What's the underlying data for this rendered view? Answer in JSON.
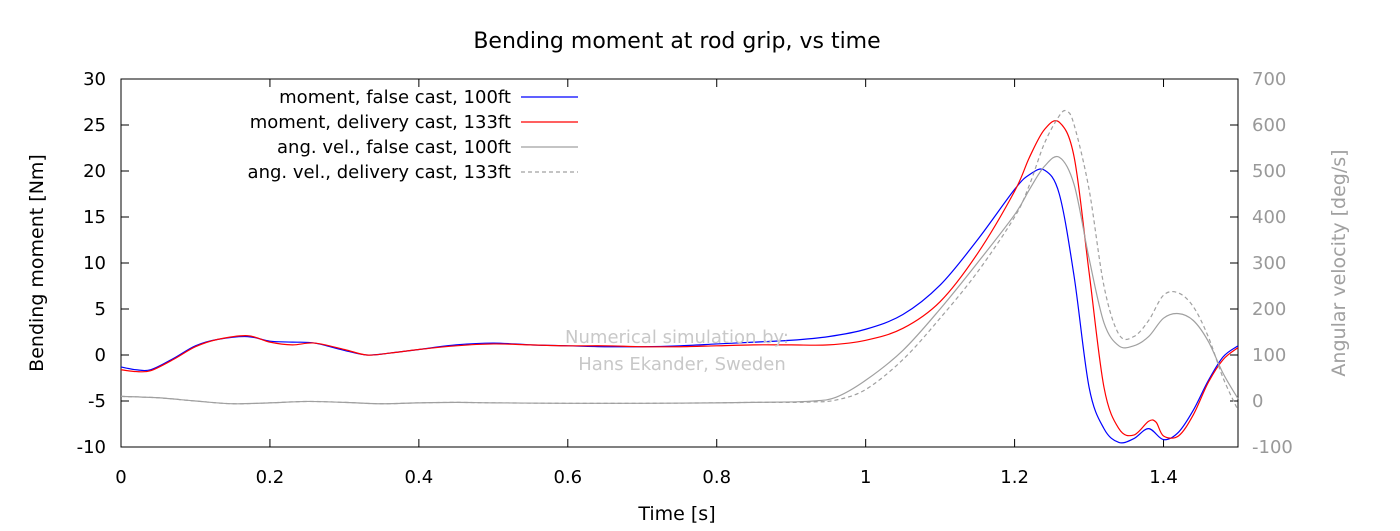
{
  "chart_data": {
    "type": "line",
    "title": "Bending moment at rod grip, vs time",
    "xlabel": "Time [s]",
    "ylabel": "Bending moment [Nm]",
    "y2label": "Angular velocity [deg/s]",
    "xlim": [
      0,
      1.5
    ],
    "ylim": [
      -10,
      30
    ],
    "y2lim": [
      -100,
      700
    ],
    "xticks": [
      "0",
      "0.2",
      "0.4",
      "0.6",
      "0.8",
      "1",
      "1.2",
      "1.4"
    ],
    "xtick_values": [
      0,
      0.2,
      0.4,
      0.6,
      0.8,
      1.0,
      1.2,
      1.4
    ],
    "yticks": [
      "-10",
      "-5",
      "0",
      "5",
      "10",
      "15",
      "20",
      "25",
      "30"
    ],
    "ytick_values": [
      -10,
      -5,
      0,
      5,
      10,
      15,
      20,
      25,
      30
    ],
    "y2ticks": [
      "-100",
      "0",
      "100",
      "200",
      "300",
      "400",
      "500",
      "600",
      "700"
    ],
    "y2tick_values": [
      -100,
      0,
      100,
      200,
      300,
      400,
      500,
      600,
      700
    ],
    "grid": false,
    "legend_position": "top-left",
    "watermark": [
      "Numerical simulation by:",
      "Hans Ekander, Sweden"
    ],
    "series": [
      {
        "name": "moment, false cast, 100ft",
        "axis": "y1",
        "color": "#0000ff",
        "dash": false,
        "x": [
          0,
          0.02,
          0.04,
          0.07,
          0.1,
          0.13,
          0.17,
          0.2,
          0.23,
          0.26,
          0.3,
          0.33,
          0.36,
          0.4,
          0.45,
          0.5,
          0.55,
          0.6,
          0.65,
          0.7,
          0.75,
          0.8,
          0.85,
          0.9,
          0.95,
          1.0,
          1.05,
          1.1,
          1.15,
          1.2,
          1.22,
          1.24,
          1.26,
          1.28,
          1.3,
          1.32,
          1.34,
          1.36,
          1.38,
          1.4,
          1.42,
          1.44,
          1.46,
          1.48,
          1.5
        ],
        "y": [
          -1.3,
          -1.6,
          -1.6,
          -0.4,
          1.0,
          1.7,
          2.0,
          1.5,
          1.4,
          1.3,
          0.5,
          0.0,
          0.2,
          0.6,
          1.1,
          1.3,
          1.1,
          1.0,
          0.9,
          0.9,
          1.0,
          1.2,
          1.4,
          1.6,
          2.0,
          2.8,
          4.4,
          7.6,
          12.5,
          18.0,
          19.6,
          20.1,
          17.5,
          8.5,
          -3.5,
          -8.0,
          -9.5,
          -9.1,
          -8.0,
          -9.2,
          -8.4,
          -6.0,
          -2.8,
          -0.2,
          1.0
        ]
      },
      {
        "name": "moment, delivery cast, 133ft",
        "axis": "y1",
        "color": "#ff0000",
        "dash": false,
        "x": [
          0,
          0.02,
          0.04,
          0.07,
          0.1,
          0.13,
          0.17,
          0.2,
          0.23,
          0.26,
          0.3,
          0.33,
          0.36,
          0.4,
          0.45,
          0.5,
          0.55,
          0.6,
          0.65,
          0.7,
          0.75,
          0.8,
          0.85,
          0.9,
          0.95,
          1.0,
          1.05,
          1.1,
          1.15,
          1.2,
          1.22,
          1.24,
          1.26,
          1.28,
          1.3,
          1.32,
          1.34,
          1.36,
          1.38,
          1.39,
          1.4,
          1.42,
          1.44,
          1.46,
          1.48,
          1.5
        ],
        "y": [
          -1.6,
          -1.8,
          -1.7,
          -0.5,
          0.9,
          1.7,
          2.1,
          1.4,
          1.1,
          1.3,
          0.6,
          0.0,
          0.2,
          0.6,
          1.0,
          1.2,
          1.1,
          1.0,
          1.0,
          0.9,
          0.9,
          1.0,
          1.1,
          1.1,
          1.1,
          1.6,
          2.9,
          5.8,
          11.0,
          17.8,
          21.5,
          24.5,
          25.3,
          21.5,
          9.0,
          -3.5,
          -8.0,
          -8.7,
          -7.2,
          -7.3,
          -8.8,
          -8.8,
          -6.5,
          -3.0,
          -0.5,
          0.8
        ]
      },
      {
        "name": "ang. vel., false cast, 100ft",
        "axis": "y2",
        "color": "#a0a0a0",
        "dash": false,
        "x": [
          0,
          0.05,
          0.1,
          0.15,
          0.2,
          0.25,
          0.3,
          0.35,
          0.4,
          0.45,
          0.5,
          0.6,
          0.7,
          0.8,
          0.85,
          0.9,
          0.93,
          0.96,
          1.0,
          1.05,
          1.1,
          1.15,
          1.2,
          1.22,
          1.24,
          1.26,
          1.28,
          1.3,
          1.32,
          1.34,
          1.36,
          1.38,
          1.4,
          1.42,
          1.44,
          1.46,
          1.48,
          1.5
        ],
        "y": [
          10,
          7,
          0,
          -6,
          -4,
          -1,
          -3,
          -6,
          -4,
          -3,
          -4,
          -5,
          -5,
          -4,
          -3,
          -2,
          0,
          8,
          45,
          110,
          200,
          300,
          405,
          460,
          510,
          530,
          470,
          310,
          170,
          120,
          120,
          140,
          180,
          190,
          175,
          130,
          60,
          5
        ]
      },
      {
        "name": "ang. vel., delivery cast, 133ft",
        "axis": "y2",
        "color": "#a0a0a0",
        "dash": true,
        "x": [
          0,
          0.05,
          0.1,
          0.15,
          0.2,
          0.25,
          0.3,
          0.35,
          0.4,
          0.45,
          0.5,
          0.6,
          0.7,
          0.8,
          0.85,
          0.9,
          0.93,
          0.96,
          1.0,
          1.05,
          1.1,
          1.15,
          1.2,
          1.22,
          1.24,
          1.26,
          1.27,
          1.28,
          1.3,
          1.32,
          1.34,
          1.36,
          1.38,
          1.4,
          1.42,
          1.44,
          1.46,
          1.48,
          1.5
        ],
        "y": [
          10,
          7,
          0,
          -6,
          -4,
          -1,
          -3,
          -6,
          -4,
          -3,
          -4,
          -5,
          -5,
          -4,
          -3,
          -3,
          -2,
          2,
          25,
          90,
          180,
          280,
          400,
          470,
          560,
          620,
          630,
          600,
          460,
          250,
          145,
          140,
          175,
          230,
          235,
          205,
          140,
          50,
          -20
        ]
      }
    ]
  }
}
